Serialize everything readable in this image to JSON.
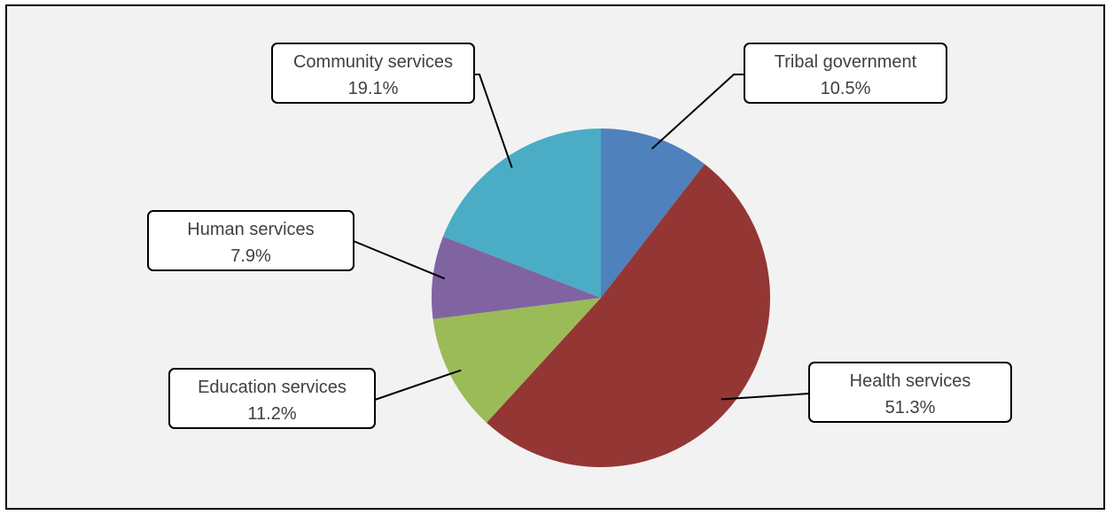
{
  "chart_data": {
    "type": "pie",
    "title": "",
    "categories": [
      "Tribal government",
      "Health services",
      "Education services",
      "Human services",
      "Community services"
    ],
    "values": [
      10.5,
      51.3,
      11.2,
      7.9,
      19.1
    ],
    "labels": [
      "10.5%",
      "51.3%",
      "11.2%",
      "7.9%",
      "19.1%"
    ],
    "colors": [
      "#4f81bd",
      "#943634",
      "#9bbb59",
      "#8064a2",
      "#4bacc6"
    ],
    "start_angle": "12 o'clock",
    "direction": "clockwise",
    "legend": "none",
    "data_labels": "callout boxes with category name and percent"
  },
  "style": {
    "page_background": "#ffffff",
    "plot_background": "#f2f2f2",
    "border_color": "#000000",
    "label_text_color": "#404040"
  }
}
